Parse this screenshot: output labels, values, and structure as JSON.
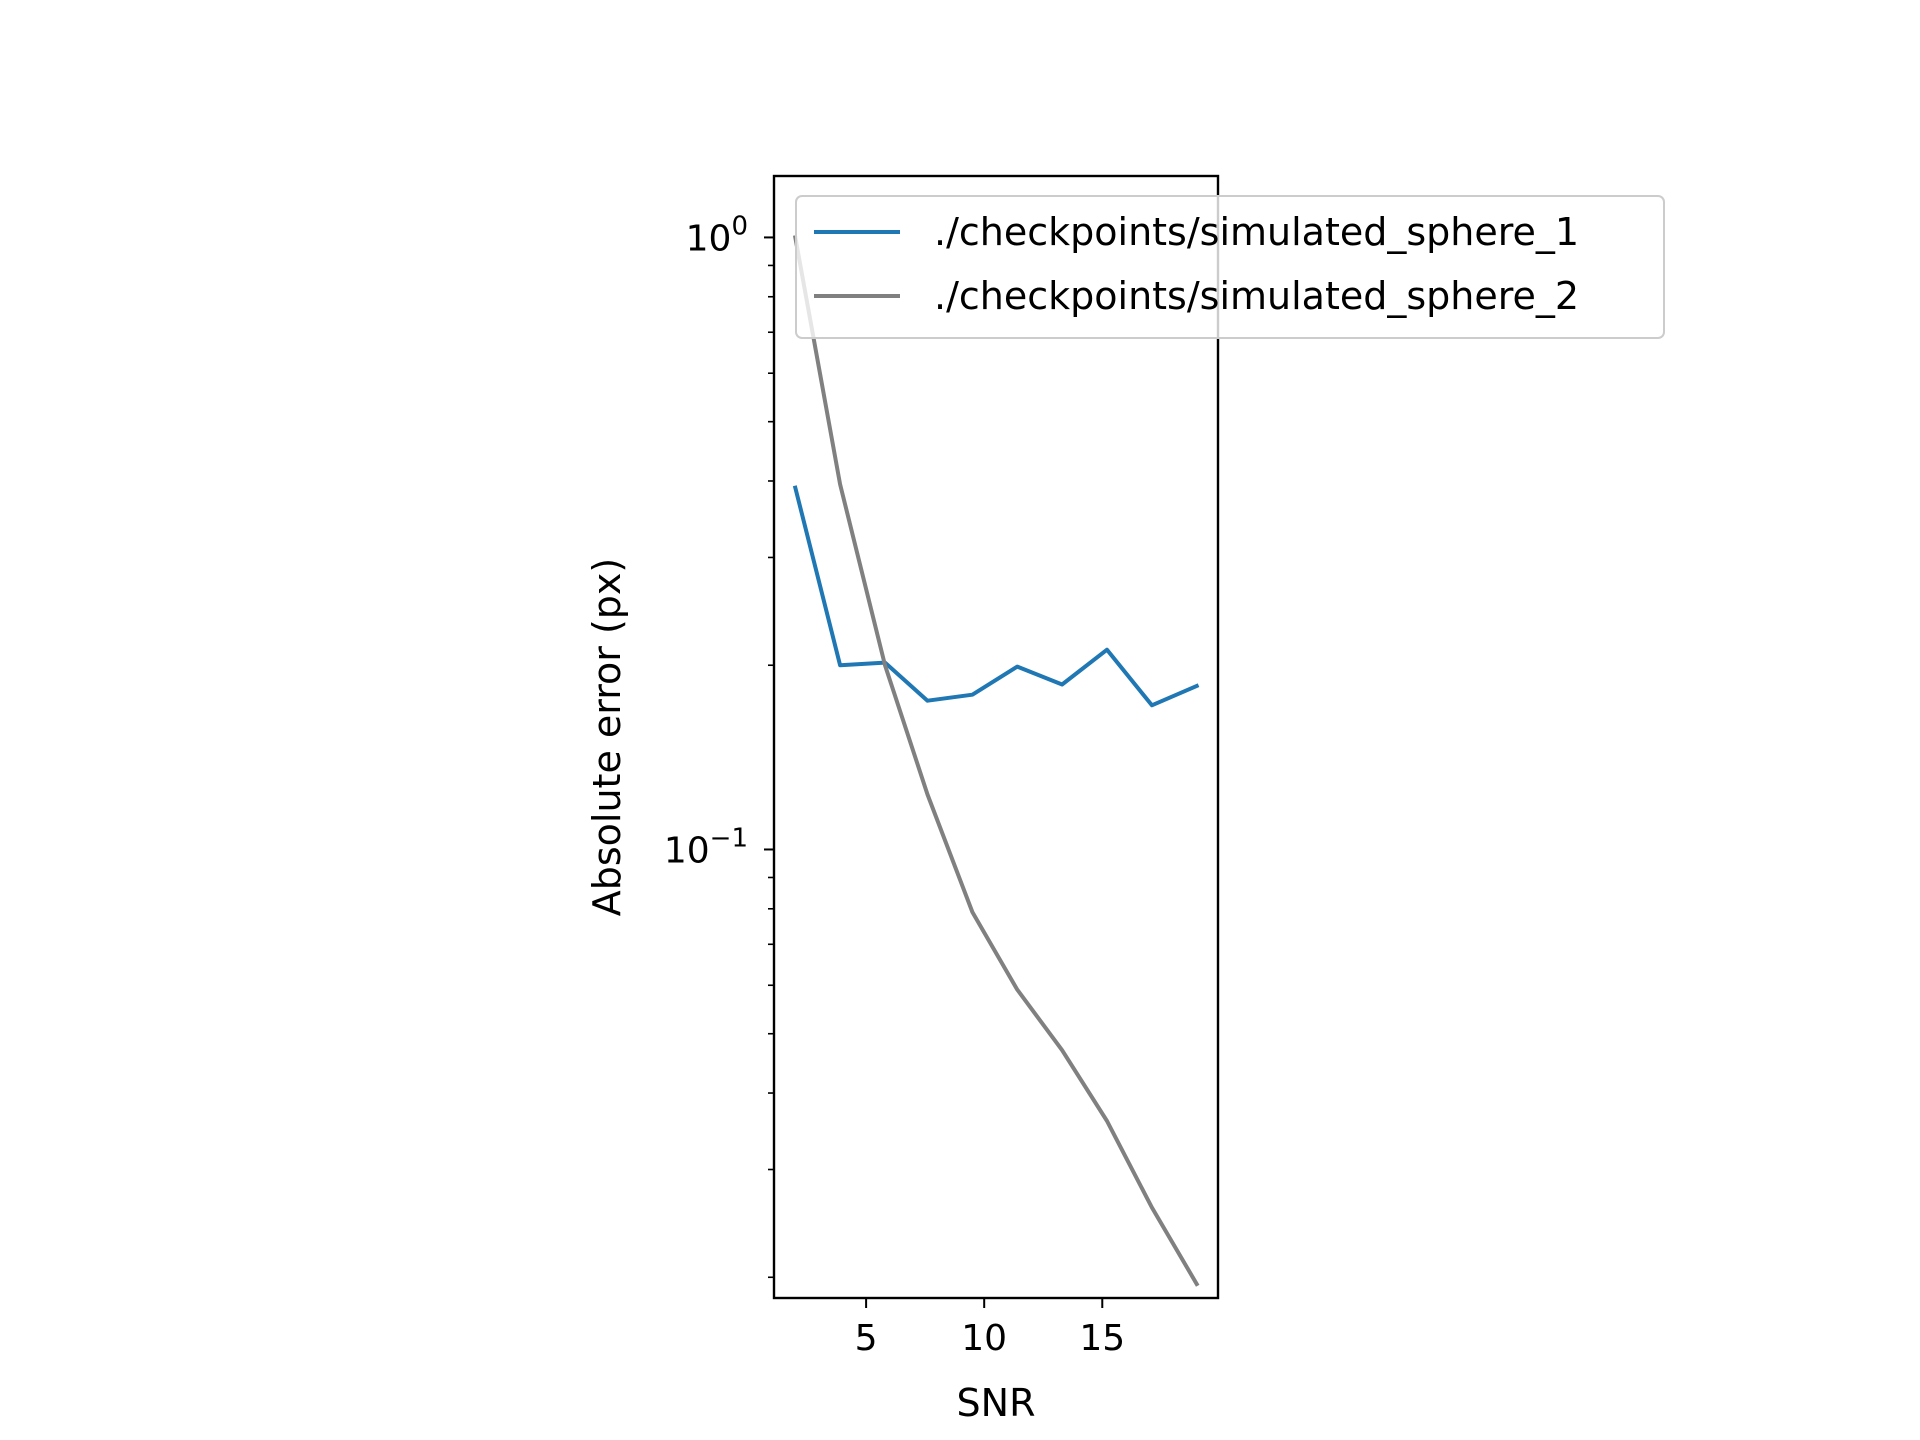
{
  "chart_data": {
    "type": "line",
    "xlabel": "SNR",
    "ylabel": "Absolute error (px)",
    "yscale": "log",
    "xlim": [
      1.1,
      19.9
    ],
    "ylim": [
      0.0185,
      1.26
    ],
    "grid": false,
    "legend_placement": "upper-right",
    "x_ticks": [
      {
        "value": 5,
        "label": "5"
      },
      {
        "value": 10,
        "label": "10"
      },
      {
        "value": 15,
        "label": "15"
      }
    ],
    "y_ticks": [
      {
        "value": 1,
        "base": "10",
        "exp": "0"
      },
      {
        "value": 0.1,
        "base": "10",
        "exp": "−1"
      }
    ],
    "x": [
      2,
      3.9,
      5.8,
      7.6,
      9.5,
      11.4,
      13.3,
      15.2,
      17.1,
      19
    ],
    "series": [
      {
        "name": "./checkpoints/simulated_sphere_1",
        "color": "#1f77b4",
        "values": [
          0.39,
          0.2,
          0.202,
          0.175,
          0.179,
          0.199,
          0.186,
          0.212,
          0.172,
          0.185
        ]
      },
      {
        "name": "./checkpoints/simulated_sphere_2",
        "color": "#808080",
        "values": [
          1.0,
          0.395,
          0.2,
          0.123,
          0.079,
          0.059,
          0.047,
          0.036,
          0.026,
          0.0195
        ]
      }
    ]
  }
}
